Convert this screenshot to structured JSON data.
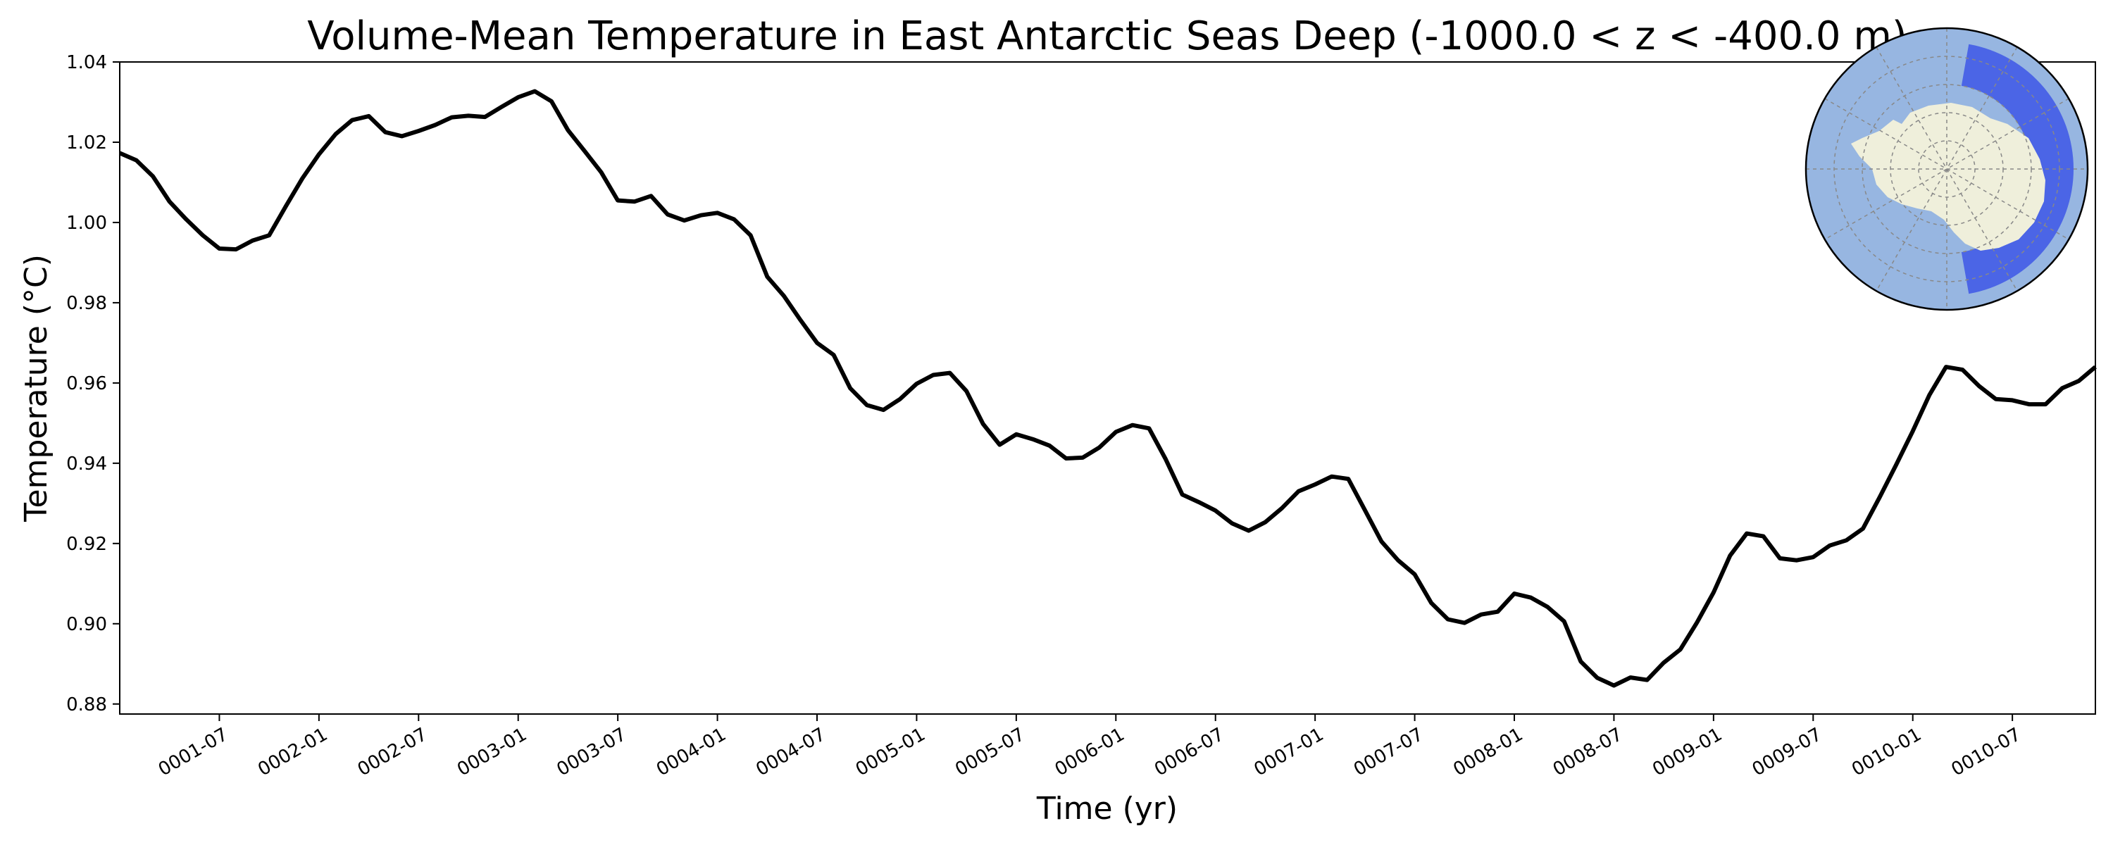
{
  "chart_data": {
    "type": "line",
    "title": "Volume-Mean Temperature in East Antarctic Seas Deep (-1000.0 < z < -400.0 m)",
    "xlabel": "Time (yr)",
    "ylabel": "Temperature (°C)",
    "xlim": [
      "0001-01",
      "0010-12"
    ],
    "ylim": [
      0.8775,
      1.04
    ],
    "grid": false,
    "y_ticks": [
      0.88,
      0.9,
      0.92,
      0.94,
      0.96,
      0.98,
      1.0,
      1.02,
      1.04
    ],
    "y_tick_labels": [
      "0.88",
      "0.90",
      "0.92",
      "0.94",
      "0.96",
      "0.98",
      "1.00",
      "1.02",
      "1.04"
    ],
    "x_ticks": [
      "0001-07",
      "0002-01",
      "0002-07",
      "0003-01",
      "0003-07",
      "0004-01",
      "0004-07",
      "0005-01",
      "0005-07",
      "0006-01",
      "0006-07",
      "0007-01",
      "0007-07",
      "0008-01",
      "0008-07",
      "0009-01",
      "0009-07",
      "0010-01",
      "0010-07"
    ],
    "series": [
      {
        "color": "#000000",
        "x": [
          "0001-01",
          "0001-02",
          "0001-03",
          "0001-04",
          "0001-05",
          "0001-06",
          "0001-07",
          "0001-08",
          "0001-09",
          "0001-10",
          "0001-11",
          "0001-12",
          "0002-01",
          "0002-02",
          "0002-03",
          "0002-04",
          "0002-05",
          "0002-06",
          "0002-07",
          "0002-08",
          "0002-09",
          "0002-10",
          "0002-11",
          "0002-12",
          "0003-01",
          "0003-02",
          "0003-03",
          "0003-04",
          "0003-05",
          "0003-06",
          "0003-07",
          "0003-08",
          "0003-09",
          "0003-10",
          "0003-11",
          "0003-12",
          "0004-01",
          "0004-02",
          "0004-03",
          "0004-04",
          "0004-05",
          "0004-06",
          "0004-07",
          "0004-08",
          "0004-09",
          "0004-10",
          "0004-11",
          "0004-12",
          "0005-01",
          "0005-02",
          "0005-03",
          "0005-04",
          "0005-05",
          "0005-06",
          "0005-07",
          "0005-08",
          "0005-09",
          "0005-10",
          "0005-11",
          "0005-12",
          "0006-01",
          "0006-02",
          "0006-03",
          "0006-04",
          "0006-05",
          "0006-06",
          "0006-07",
          "0006-08",
          "0006-09",
          "0006-10",
          "0006-11",
          "0006-12",
          "0007-01",
          "0007-02",
          "0007-03",
          "0007-04",
          "0007-05",
          "0007-06",
          "0007-07",
          "0007-08",
          "0007-09",
          "0007-10",
          "0007-11",
          "0007-12",
          "0008-01",
          "0008-02",
          "0008-03",
          "0008-04",
          "0008-05",
          "0008-06",
          "0008-07",
          "0008-08",
          "0008-09",
          "0008-10",
          "0008-11",
          "0008-12",
          "0009-01",
          "0009-02",
          "0009-03",
          "0009-04",
          "0009-05",
          "0009-06",
          "0009-07",
          "0009-08",
          "0009-09",
          "0009-10",
          "0009-11",
          "0009-12",
          "0010-01",
          "0010-02",
          "0010-03",
          "0010-04",
          "0010-05",
          "0010-06",
          "0010-07",
          "0010-08",
          "0010-09",
          "0010-10",
          "0010-11",
          "0010-12"
        ],
        "y": [
          1.0173,
          1.0155,
          1.0115,
          1.0052,
          1.0008,
          0.9968,
          0.9935,
          0.9933,
          0.9955,
          0.9968,
          1.004,
          1.011,
          1.017,
          1.022,
          1.0255,
          1.0265,
          1.0225,
          1.0215,
          1.0228,
          1.0243,
          1.0262,
          1.0266,
          1.0263,
          1.0288,
          1.0312,
          1.0327,
          1.0302,
          1.023,
          1.0178,
          1.0125,
          1.0055,
          1.0052,
          1.0066,
          1.002,
          1.0005,
          1.0018,
          1.0024,
          1.0008,
          0.9968,
          0.9865,
          0.9817,
          0.9757,
          0.97,
          0.967,
          0.9587,
          0.9545,
          0.9533,
          0.956,
          0.9598,
          0.962,
          0.9625,
          0.958,
          0.9498,
          0.9446,
          0.9472,
          0.946,
          0.9444,
          0.9412,
          0.9414,
          0.9439,
          0.9478,
          0.9495,
          0.9487,
          0.941,
          0.9322,
          0.9303,
          0.9282,
          0.925,
          0.9232,
          0.9253,
          0.9288,
          0.933,
          0.9347,
          0.9367,
          0.9361,
          0.9283,
          0.9205,
          0.9158,
          0.9123,
          0.9052,
          0.9011,
          0.9002,
          0.9023,
          0.903,
          0.9075,
          0.9065,
          0.9042,
          0.9006,
          0.8906,
          0.8865,
          0.8846,
          0.8866,
          0.886,
          0.8903,
          0.8936,
          0.9003,
          0.9078,
          0.917,
          0.9225,
          0.9218,
          0.9163,
          0.9158,
          0.9166,
          0.9195,
          0.9208,
          0.9237,
          0.9315,
          0.9396,
          0.948,
          0.957,
          0.964,
          0.9633,
          0.9592,
          0.956,
          0.9557,
          0.9547,
          0.9547,
          0.9587,
          0.9605,
          0.964
        ]
      }
    ]
  },
  "inset_map": {
    "ocean_color": "#97b6e1",
    "land_color": "#efefdb",
    "region_color": "#4b65e6",
    "border_color": "#000000"
  }
}
